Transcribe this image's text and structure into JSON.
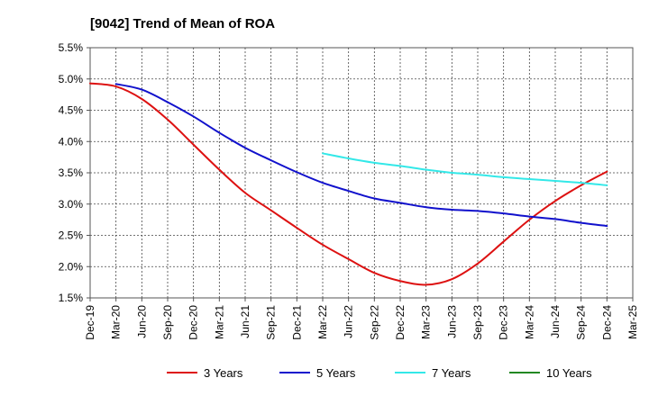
{
  "chart_data": {
    "type": "line",
    "title": "[9042]  Trend of Mean of ROA",
    "xlabel": "",
    "ylabel": "",
    "ylim": [
      1.5,
      5.5
    ],
    "y_ticks": [
      "1.5%",
      "2.0%",
      "2.5%",
      "3.0%",
      "3.5%",
      "4.0%",
      "4.5%",
      "5.0%",
      "5.5%"
    ],
    "categories": [
      "Dec-19",
      "Mar-20",
      "Jun-20",
      "Sep-20",
      "Dec-20",
      "Mar-21",
      "Jun-21",
      "Sep-21",
      "Dec-21",
      "Mar-22",
      "Jun-22",
      "Sep-22",
      "Dec-22",
      "Mar-23",
      "Jun-23",
      "Sep-23",
      "Dec-23",
      "Mar-24",
      "Jun-24",
      "Sep-24",
      "Dec-24",
      "Mar-25"
    ],
    "grid": true,
    "legend_position": "bottom",
    "series": [
      {
        "name": "3 Years",
        "color": "#dd1111",
        "values": [
          4.93,
          4.88,
          4.68,
          4.35,
          3.95,
          3.55,
          3.18,
          2.9,
          2.62,
          2.35,
          2.12,
          1.9,
          1.77,
          1.71,
          1.8,
          2.05,
          2.4,
          2.75,
          3.05,
          3.3,
          3.52,
          null
        ]
      },
      {
        "name": "5 Years",
        "color": "#1111cc",
        "values": [
          null,
          4.92,
          4.83,
          4.63,
          4.4,
          4.14,
          3.9,
          3.7,
          3.51,
          3.34,
          3.21,
          3.09,
          3.02,
          2.95,
          2.91,
          2.89,
          2.85,
          2.8,
          2.76,
          2.7,
          2.65,
          null
        ]
      },
      {
        "name": "7 Years",
        "color": "#33e8e8",
        "values": [
          null,
          null,
          null,
          null,
          null,
          null,
          null,
          null,
          null,
          3.81,
          3.73,
          3.66,
          3.61,
          3.55,
          3.5,
          3.47,
          3.43,
          3.4,
          3.37,
          3.34,
          3.3,
          null
        ]
      },
      {
        "name": "10 Years",
        "color": "#228822",
        "values": [
          null,
          null,
          null,
          null,
          null,
          null,
          null,
          null,
          null,
          null,
          null,
          null,
          null,
          null,
          null,
          null,
          null,
          null,
          null,
          null,
          null,
          null
        ]
      }
    ]
  }
}
